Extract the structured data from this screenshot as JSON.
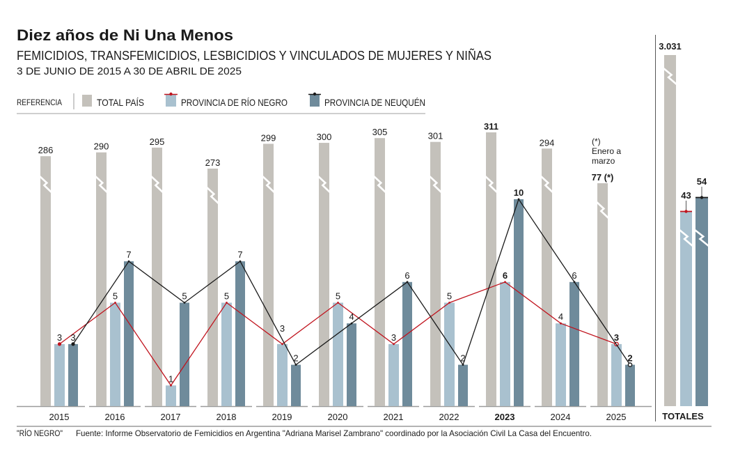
{
  "header": {
    "title": "Diez años de Ni Una Menos",
    "subtitle": "FEMICIDIOS, TRANSFEMICIDIOS, LESBICIDIOS Y VINCULADOS DE MUJERES Y NIÑAS",
    "date_range": "3 DE JUNIO DE 2015 A 30 DE ABRIL DE 2025"
  },
  "legend": {
    "title": "REFERENCIA",
    "items": [
      {
        "label": "TOTAL PAÍS",
        "color": "#c4c1bb"
      },
      {
        "label": "PROVINCIA DE RÍO NEGRO",
        "color": "#a9c1cf",
        "line_color": "#c0141e"
      },
      {
        "label": "PROVINCIA DE NEUQUÉN",
        "color": "#6f8b9b",
        "line_color": "#1a1a1a"
      }
    ]
  },
  "chart_data": {
    "type": "bar",
    "title": "Diez años de Ni Una Menos",
    "subtitle": "FEMICIDIOS, TRANSFEMICIDIOS, LESBICIDIOS Y VINCULADOS DE MUJERES Y NIÑAS",
    "xlabel": "",
    "ylabel": "",
    "grid": false,
    "axis_break": true,
    "legend_position": "top-left",
    "categories": [
      "2015",
      "2016",
      "2017",
      "2018",
      "2019",
      "2020",
      "2021",
      "2022",
      "2023",
      "2024",
      "2025"
    ],
    "series": [
      {
        "name": "Total país",
        "color": "#c4c1bb",
        "values": [
          286,
          290,
          295,
          273,
          299,
          300,
          305,
          301,
          311,
          294,
          77
        ],
        "labels": [
          "286",
          "290",
          "295",
          "273",
          "299",
          "300",
          "305",
          "301",
          "311",
          "294",
          "77 (*)"
        ]
      },
      {
        "name": "Provincia de Río Negro",
        "color": "#a9c1cf",
        "line_color": "#c0141e",
        "values": [
          3,
          5,
          1,
          5,
          3,
          5,
          3,
          5,
          6,
          4,
          3
        ]
      },
      {
        "name": "Provincia de Neuquén",
        "color": "#6f8b9b",
        "line_color": "#1a1a1a",
        "values": [
          3,
          7,
          5,
          7,
          2,
          4,
          6,
          2,
          10,
          6,
          2
        ]
      }
    ],
    "overlay_lines": [
      "Provincia de Río Negro",
      "Provincia de Neuquén"
    ],
    "bold_value_labels": [
      "2023",
      "2025"
    ],
    "bold_category_labels": [
      "2023"
    ],
    "annotations": [
      {
        "category": "2025",
        "lines": [
          "(*)",
          "Enero a",
          "marzo"
        ]
      }
    ],
    "totals": {
      "label": "TOTALES",
      "values": [
        {
          "series": "Total país",
          "value": 3031,
          "label": "3.031"
        },
        {
          "series": "Provincia de Río Negro",
          "value": 43,
          "label": "43"
        },
        {
          "series": "Provincia de Neuquén",
          "value": 54,
          "label": "54"
        }
      ]
    }
  },
  "footer": {
    "region_tag": "\"RÍO NEGRO\"",
    "source": "Fuente: Informe Observatorio de Femicidios en Argentina \"Adriana Marisel Zambrano\" coordinado por la Asociación Civil La Casa del Encuentro."
  }
}
